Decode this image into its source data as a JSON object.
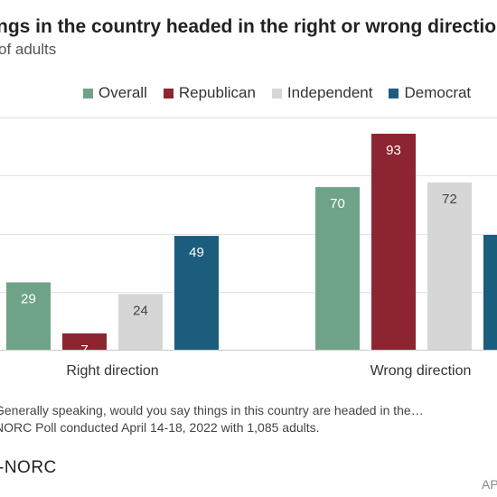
{
  "header": {
    "title": "ngs in the country headed in the right or wrong direction",
    "subtitle": "of adults"
  },
  "legend": {
    "items": [
      {
        "label": "Overall",
        "color": "#6fa387"
      },
      {
        "label": "Republican",
        "color": "#8c2530"
      },
      {
        "label": "Independent",
        "color": "#d6d6d6"
      },
      {
        "label": "Democrat",
        "color": "#1c5c7c"
      }
    ]
  },
  "chart_data": {
    "type": "bar",
    "title": "ngs in the country headed in the right or wrong direction",
    "subtitle": "of adults",
    "categories": [
      "Right direction",
      "Wrong direction"
    ],
    "series": [
      {
        "name": "Overall",
        "color": "#6fa387",
        "values": [
          29,
          70
        ]
      },
      {
        "name": "Republican",
        "color": "#8c2530",
        "values": [
          7,
          93
        ]
      },
      {
        "name": "Independent",
        "color": "#d6d6d6",
        "values": [
          24,
          72
        ]
      },
      {
        "name": "Democrat",
        "color": "#1c5c7c",
        "values": [
          49,
          null
        ]
      }
    ],
    "ylim": [
      0,
      100
    ],
    "grid": true,
    "legend": "top"
  },
  "footer": {
    "question": "Generally speaking, would you say things in this country are headed in the…",
    "poll": "NORC Poll conducted April 14-18, 2022 with 1,085 adults.",
    "logo": "-NORC",
    "credit": "AP"
  }
}
